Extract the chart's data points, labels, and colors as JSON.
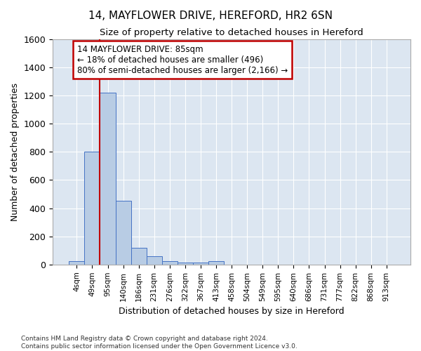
{
  "title": "14, MAYFLOWER DRIVE, HEREFORD, HR2 6SN",
  "subtitle": "Size of property relative to detached houses in Hereford",
  "xlabel": "Distribution of detached houses by size in Hereford",
  "ylabel": "Number of detached properties",
  "footnote1": "Contains HM Land Registry data © Crown copyright and database right 2024.",
  "footnote2": "Contains public sector information licensed under the Open Government Licence v3.0.",
  "annotation_title": "14 MAYFLOWER DRIVE: 85sqm",
  "annotation_line1": "← 18% of detached houses are smaller (496)",
  "annotation_line2": "80% of semi-detached houses are larger (2,166) →",
  "bar_color": "#b8cce4",
  "bar_edge_color": "#4472c4",
  "vline_color": "#c00000",
  "annotation_box_color": "#c00000",
  "background_color": "#dce6f1",
  "ylim": [
    0,
    1600
  ],
  "bin_labels": [
    "4sqm",
    "49sqm",
    "95sqm",
    "140sqm",
    "186sqm",
    "231sqm",
    "276sqm",
    "322sqm",
    "367sqm",
    "413sqm",
    "458sqm",
    "504sqm",
    "549sqm",
    "595sqm",
    "640sqm",
    "686sqm",
    "731sqm",
    "777sqm",
    "822sqm",
    "868sqm",
    "913sqm"
  ],
  "bin_values": [
    25,
    800,
    1220,
    450,
    120,
    60,
    25,
    15,
    15,
    25,
    0,
    0,
    0,
    0,
    0,
    0,
    0,
    0,
    0,
    0,
    0
  ],
  "vline_x": 1.5
}
